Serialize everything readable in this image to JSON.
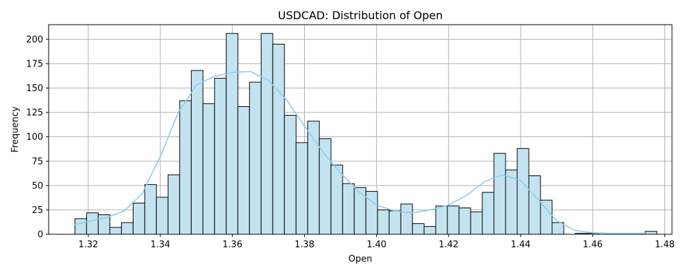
{
  "chart_data": {
    "type": "histogram",
    "title": "USDCAD: Distribution of Open",
    "xlabel": "Open",
    "ylabel": "Frequency",
    "xlim": [
      1.309,
      1.482
    ],
    "ylim": [
      0,
      215
    ],
    "grid": true,
    "legend": "none",
    "bin_start": 1.3163,
    "bin_width": 0.00323,
    "counts": [
      16,
      22,
      20,
      7,
      12,
      32,
      51,
      38,
      61,
      137,
      168,
      134,
      160,
      206,
      131,
      156,
      206,
      195,
      122,
      94,
      116,
      98,
      71,
      52,
      48,
      44,
      25,
      24,
      31,
      11,
      8,
      29,
      29,
      27,
      23,
      43,
      83,
      66,
      88,
      60,
      35,
      12,
      0,
      1,
      1,
      0,
      0,
      0,
      0,
      3
    ],
    "x_ticks": [
      "1.32",
      "1.34",
      "1.36",
      "1.38",
      "1.40",
      "1.42",
      "1.44",
      "1.46",
      "1.48"
    ],
    "x_tick_values": [
      1.32,
      1.34,
      1.36,
      1.38,
      1.4,
      1.42,
      1.44,
      1.46,
      1.48
    ],
    "y_ticks": [
      "0",
      "25",
      "50",
      "75",
      "100",
      "125",
      "150",
      "175",
      "200"
    ],
    "y_tick_values": [
      0,
      25,
      50,
      75,
      100,
      125,
      150,
      175,
      200
    ],
    "kde": {
      "x": [
        1.3163,
        1.32,
        1.325,
        1.33,
        1.335,
        1.34,
        1.345,
        1.35,
        1.355,
        1.36,
        1.365,
        1.37,
        1.375,
        1.38,
        1.385,
        1.39,
        1.395,
        1.4,
        1.405,
        1.41,
        1.415,
        1.42,
        1.425,
        1.43,
        1.435,
        1.44,
        1.445,
        1.45,
        1.455,
        1.46,
        1.465,
        1.47,
        1.4745
      ],
      "y": [
        10,
        13,
        17,
        24,
        42,
        80,
        125,
        153,
        162,
        166,
        167,
        158,
        138,
        111,
        85,
        63,
        44,
        30,
        24,
        22,
        25,
        30,
        40,
        54,
        61,
        55,
        35,
        14,
        4,
        1.5,
        1,
        1,
        1
      ]
    },
    "colors": {
      "bar_fill": "#c3e3f1",
      "bar_edge": "#000000",
      "kde_line": "#87ceeb",
      "grid": "#b0b0b0"
    }
  }
}
